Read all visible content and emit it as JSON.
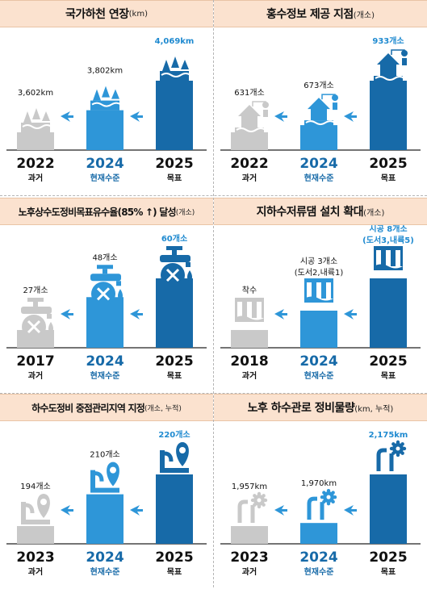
{
  "colors": {
    "gray": "#c9c9c9",
    "mid_blue": "#2e96d8",
    "dark_blue": "#176aa8",
    "header_bg": "#fbe2cf",
    "arrow": "#2e96d8",
    "target_text": "#1f8ad0"
  },
  "panels": [
    {
      "title": "국가하천 연장",
      "unit": "(km)",
      "icon": "river-icon",
      "chart_data": {
        "type": "bar",
        "categories": [
          "2022",
          "2024",
          "2025"
        ],
        "sublabels": [
          "과거",
          "현재수준",
          "목표"
        ],
        "value_labels": [
          "3,602km",
          "3,802km",
          "4,069km"
        ],
        "values": [
          3602,
          3802,
          4069
        ]
      }
    },
    {
      "title": "홍수정보 제공 지점",
      "unit": "(개소)",
      "icon": "flood-house-icon",
      "chart_data": {
        "type": "bar",
        "categories": [
          "2022",
          "2024",
          "2025"
        ],
        "sublabels": [
          "과거",
          "현재수준",
          "목표"
        ],
        "value_labels": [
          "631개소",
          "673개소",
          "933개소"
        ],
        "values": [
          631,
          673,
          933
        ]
      }
    },
    {
      "title": "노후상수도정비목표유수율(85% ↑) 달성",
      "unit": "(개소)",
      "icon": "faucet-wrench-icon",
      "chart_data": {
        "type": "bar",
        "categories": [
          "2017",
          "2024",
          "2025"
        ],
        "sublabels": [
          "과거",
          "현재수준",
          "목표"
        ],
        "value_labels": [
          "27개소",
          "48개소",
          "60개소"
        ],
        "values": [
          27,
          48,
          60
        ]
      }
    },
    {
      "title": "지하수저류댐 설치 확대",
      "unit": "(개소)",
      "icon": "underground-dam-icon",
      "chart_data": {
        "type": "bar",
        "categories": [
          "2018",
          "2024",
          "2025"
        ],
        "sublabels": [
          "과거",
          "현재수준",
          "목표"
        ],
        "value_labels": [
          "착수",
          "시공 3개소",
          "시공 8개소"
        ],
        "value_sublabels": [
          "",
          "(도서2,내륙1)",
          "(도서3,내륙5)"
        ],
        "values": [
          0,
          3,
          8
        ]
      }
    },
    {
      "title": "하수도정비 중점관리지역 지정",
      "unit": "(개소, 누적)",
      "icon": "sewer-pin-icon",
      "chart_data": {
        "type": "bar",
        "categories": [
          "2023",
          "2024",
          "2025"
        ],
        "sublabels": [
          "과거",
          "현재수준",
          "목표"
        ],
        "value_labels": [
          "194개소",
          "210개소",
          "220개소"
        ],
        "values": [
          194,
          210,
          220
        ]
      }
    },
    {
      "title": "노후 하수관로 정비물량",
      "unit": "(km, 누적)",
      "icon": "pipe-gear-icon",
      "chart_data": {
        "type": "bar",
        "categories": [
          "2023",
          "2024",
          "2025"
        ],
        "sublabels": [
          "과거",
          "현재수준",
          "목표"
        ],
        "value_labels": [
          "1,957km",
          "1,970km",
          "2,175km"
        ],
        "values": [
          1957,
          1970,
          2175
        ]
      }
    }
  ]
}
